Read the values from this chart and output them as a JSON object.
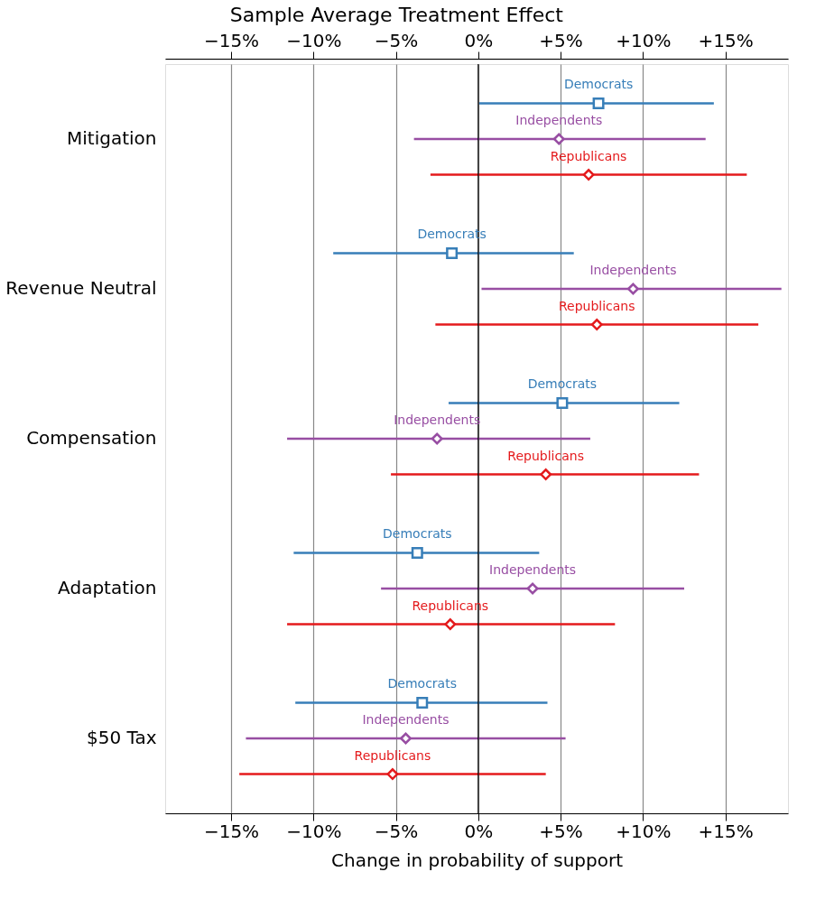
{
  "chart_data": {
    "type": "scatter",
    "orientation": "horizontal",
    "title": "Sample Average Treatment Effect",
    "xlabel": "Change in probability of support",
    "categories": [
      "Mitigation",
      "Revenue Neutral",
      "Compensation",
      "Adaptation",
      "$50 Tax"
    ],
    "series": [
      {
        "name": "Democrats",
        "color": "#377eb8",
        "marker": "square",
        "values": [
          7.3,
          -1.6,
          5.1,
          -3.7,
          -3.4
        ],
        "errors": [
          [
            0.05,
            14.3
          ],
          [
            -8.8,
            5.8
          ],
          [
            -1.8,
            12.2
          ],
          [
            -11.2,
            3.7
          ],
          [
            -11.1,
            4.2
          ]
        ]
      },
      {
        "name": "Independents",
        "color": "#984ea3",
        "marker": "diamond",
        "values": [
          4.9,
          9.4,
          -2.5,
          3.3,
          -4.4
        ],
        "errors": [
          [
            -3.9,
            13.8
          ],
          [
            0.2,
            18.4
          ],
          [
            -11.6,
            6.8
          ],
          [
            -5.9,
            12.5
          ],
          [
            -14.1,
            5.3
          ]
        ]
      },
      {
        "name": "Republicans",
        "color": "#e41a1c",
        "marker": "diamond",
        "values": [
          6.7,
          7.2,
          4.1,
          -1.7,
          -5.2
        ],
        "errors": [
          [
            -2.9,
            16.3
          ],
          [
            -2.6,
            17.0
          ],
          [
            -5.3,
            13.4
          ],
          [
            -11.6,
            8.3
          ],
          [
            -14.5,
            4.1
          ]
        ]
      }
    ],
    "xlim": [
      -19,
      18.8
    ],
    "xticks": [
      {
        "value": -15,
        "label": "−15%"
      },
      {
        "value": -10,
        "label": "−10%"
      },
      {
        "value": -5,
        "label": "−5%"
      },
      {
        "value": 0,
        "label": "0%"
      },
      {
        "value": 5,
        "label": "+5%"
      },
      {
        "value": 10,
        "label": "+10%"
      },
      {
        "value": 15,
        "label": "+15%"
      }
    ],
    "x2lim": [
      -19,
      18.8
    ],
    "x2ticks": [
      {
        "value": -15,
        "label": "−15%"
      },
      {
        "value": -10,
        "label": "−10%"
      },
      {
        "value": -5,
        "label": "−5%"
      },
      {
        "value": 0,
        "label": "0%"
      },
      {
        "value": 5,
        "label": "+5%"
      },
      {
        "value": 10,
        "label": "+10%"
      },
      {
        "value": 15,
        "label": "+15%"
      }
    ],
    "grid": "x",
    "ref_lines": [
      {
        "axis": "x",
        "value": 0,
        "color": "#000000"
      }
    ]
  }
}
